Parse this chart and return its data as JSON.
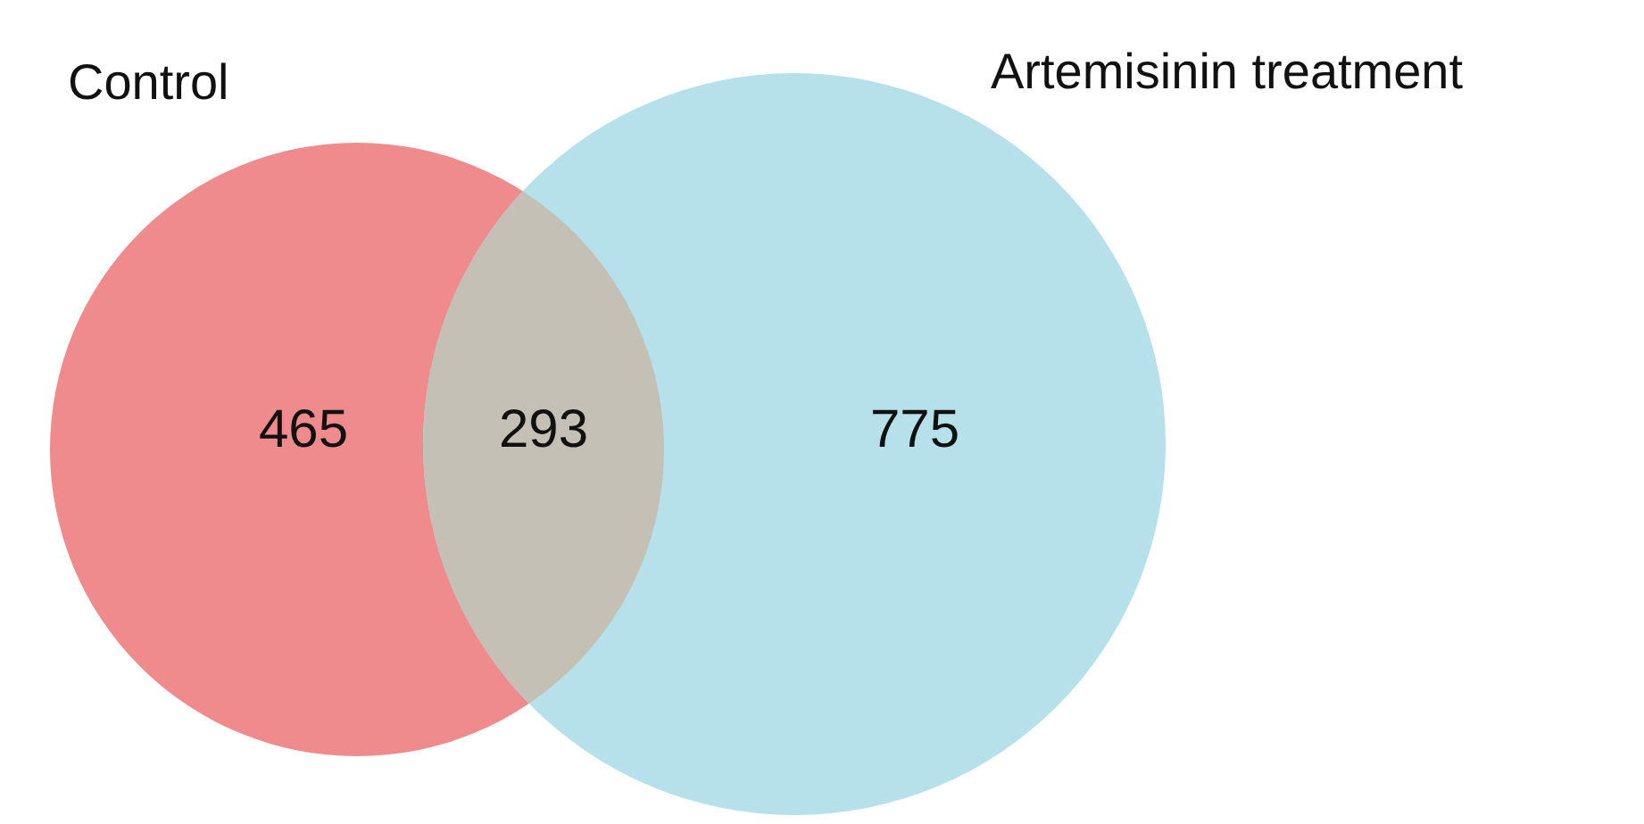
{
  "chart_data": {
    "type": "other",
    "categories": [
      "Control",
      null,
      "Artemisinin treatment"
    ],
    "values": [
      465,
      293,
      775
    ],
    "colors": [
      "#ef8b8d",
      "#c4c0b5",
      "#b7e1ea"
    ],
    "data_labels": true
  }
}
